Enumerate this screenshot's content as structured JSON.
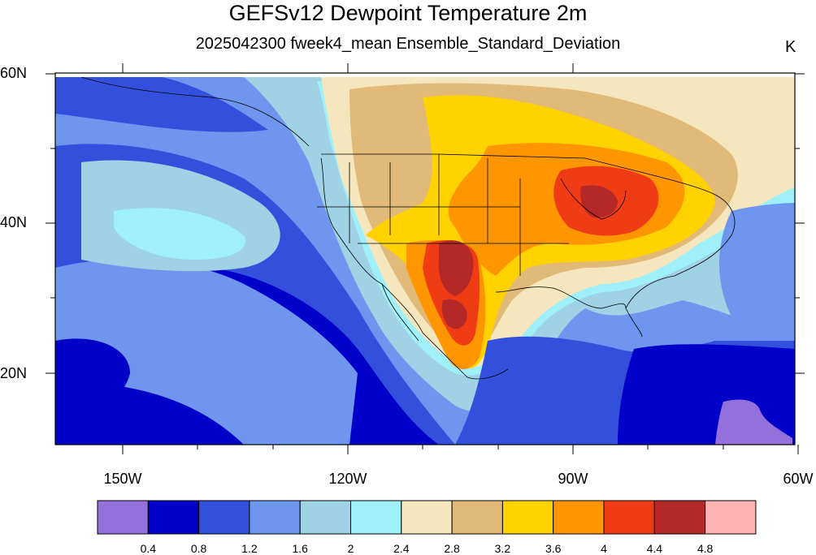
{
  "title": "GEFSv12 Dewpoint Temperature 2m",
  "subtitle": "2025042300 fweek4_mean Ensemble_Standard_Deviation",
  "units": "K",
  "lat_labels": [
    "60N",
    "40N",
    "20N"
  ],
  "lon_labels": [
    "150W",
    "120W",
    "90W",
    "60W"
  ],
  "colorbar": {
    "colors": [
      "#9370db",
      "#0000c8",
      "#3250dc",
      "#6e96ee",
      "#a0d2e6",
      "#a0f0fa",
      "#f5e6be",
      "#e1b978",
      "#ffd200",
      "#ff9600",
      "#f03c14",
      "#b42828",
      "#ffb4b4"
    ],
    "labels": [
      "0.4",
      "0.8",
      "1.2",
      "1.6",
      "2",
      "2.4",
      "2.8",
      "3.2",
      "3.6",
      "4",
      "4.4",
      "4.8"
    ]
  }
}
